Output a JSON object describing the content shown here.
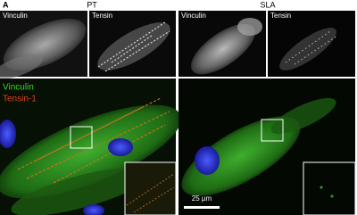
{
  "figure": {
    "panel_letter": "A",
    "conditions": [
      "PT",
      "SLA"
    ],
    "top_row": [
      {
        "label": "Vinculin"
      },
      {
        "label": "Tensin"
      },
      {
        "label": "Vinculin"
      },
      {
        "label": "Tensin"
      }
    ],
    "merge_legend": [
      "Vinculin",
      "Tensin-1"
    ],
    "scale_bar": "25 µm"
  }
}
